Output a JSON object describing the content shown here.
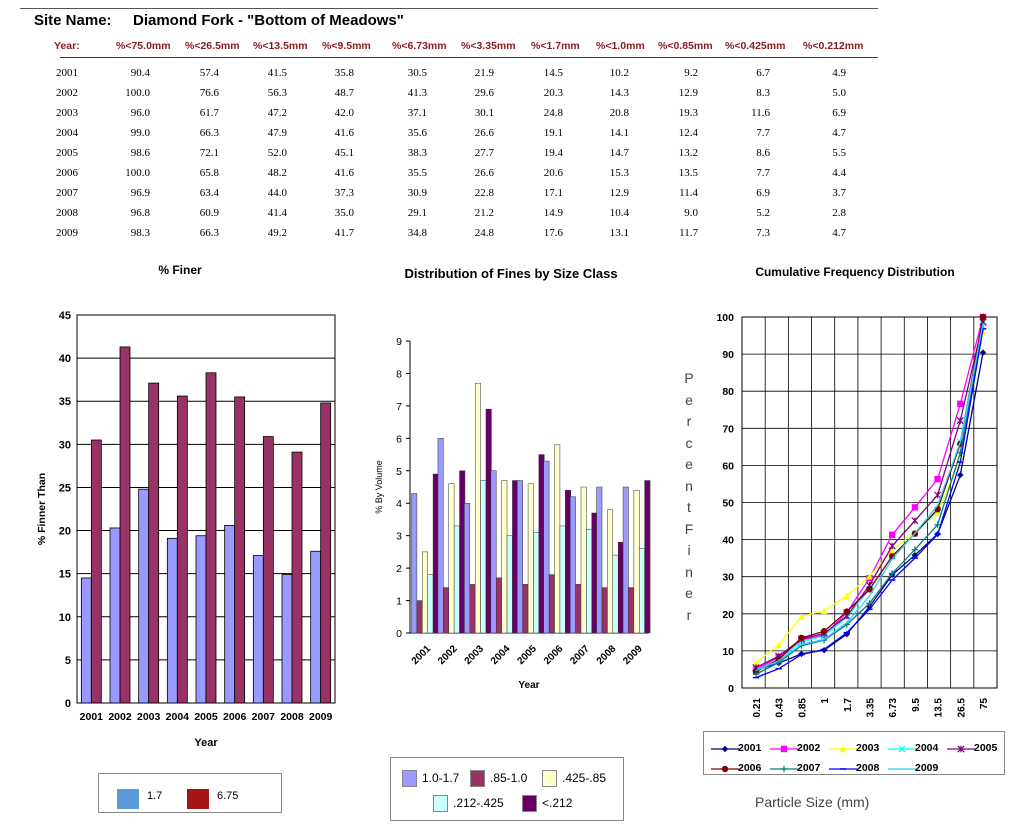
{
  "site": {
    "label": "Site Name:",
    "value": "Diamond Fork - \"Bottom of Meadows\""
  },
  "table": {
    "headers": [
      "Year:",
      "%<75.0mm",
      "%<26.5mm",
      "%<13.5mm",
      "%<9.5mm",
      "%<6.73mm",
      "%<3.35mm",
      "%<1.7mm",
      "%<1.0mm",
      "%<0.85mm",
      "%<0.425mm",
      "%<0.212mm"
    ],
    "rows": [
      [
        "2001",
        "90.4",
        "57.4",
        "41.5",
        "35.8",
        "30.5",
        "21.9",
        "14.5",
        "10.2",
        "9.2",
        "6.7",
        "4.9"
      ],
      [
        "2002",
        "100.0",
        "76.6",
        "56.3",
        "48.7",
        "41.3",
        "29.6",
        "20.3",
        "14.3",
        "12.9",
        "8.3",
        "5.0"
      ],
      [
        "2003",
        "96.0",
        "61.7",
        "47.2",
        "42.0",
        "37.1",
        "30.1",
        "24.8",
        "20.8",
        "19.3",
        "11.6",
        "6.9"
      ],
      [
        "2004",
        "99.0",
        "66.3",
        "47.9",
        "41.6",
        "35.6",
        "26.6",
        "19.1",
        "14.1",
        "12.4",
        "7.7",
        "4.7"
      ],
      [
        "2005",
        "98.6",
        "72.1",
        "52.0",
        "45.1",
        "38.3",
        "27.7",
        "19.4",
        "14.7",
        "13.2",
        "8.6",
        "5.5"
      ],
      [
        "2006",
        "100.0",
        "65.8",
        "48.2",
        "41.6",
        "35.5",
        "26.6",
        "20.6",
        "15.3",
        "13.5",
        "7.7",
        "4.4"
      ],
      [
        "2007",
        "96.9",
        "63.4",
        "44.0",
        "37.3",
        "30.9",
        "22.8",
        "17.1",
        "12.9",
        "11.4",
        "6.9",
        "3.7"
      ],
      [
        "2008",
        "96.8",
        "60.9",
        "41.4",
        "35.0",
        "29.1",
        "21.2",
        "14.9",
        "10.4",
        "9.0",
        "5.2",
        "2.8"
      ],
      [
        "2009",
        "98.3",
        "66.3",
        "49.2",
        "41.7",
        "34.8",
        "24.8",
        "17.6",
        "13.1",
        "11.7",
        "7.3",
        "4.7"
      ]
    ]
  },
  "chart_data": [
    {
      "type": "bar",
      "title": "% Finer",
      "xlabel": "Year",
      "ylabel": "% Finner Than",
      "ylim": [
        0,
        45
      ],
      "yticks": [
        0,
        5,
        10,
        15,
        20,
        25,
        30,
        35,
        40,
        45
      ],
      "grid": true,
      "legend_placement": "bottom",
      "categories": [
        "2001",
        "2002",
        "2003",
        "2004",
        "2005",
        "2006",
        "2007",
        "2008",
        "2009"
      ],
      "series": [
        {
          "name": "1.7",
          "color": "#9999ff",
          "legend_color": "#5b9bd5",
          "values": [
            14.5,
            20.3,
            24.8,
            19.1,
            19.4,
            20.6,
            17.1,
            14.9,
            17.6
          ]
        },
        {
          "name": "6.75",
          "color": "#993366",
          "legend_color": "#a31515",
          "values": [
            30.5,
            41.3,
            37.1,
            35.6,
            38.3,
            35.5,
            30.9,
            29.1,
            34.8
          ]
        }
      ]
    },
    {
      "type": "bar",
      "title": "Distribution of Fines by Size Class",
      "xlabel": "Year",
      "ylabel": "% By Volume",
      "ylim": [
        0,
        9
      ],
      "yticks": [
        0,
        1,
        2,
        3,
        4,
        5,
        6,
        7,
        8,
        9
      ],
      "grid": false,
      "legend_placement": "bottom",
      "categories": [
        "2001",
        "2002",
        "2003",
        "2004",
        "2005",
        "2006",
        "2007",
        "2008",
        "2009"
      ],
      "series": [
        {
          "name": "1.0-1.7",
          "color": "#9999ff",
          "values": [
            4.3,
            6.0,
            4.0,
            5.0,
            4.7,
            5.3,
            4.2,
            4.5,
            4.5
          ]
        },
        {
          "name": ".85-1.0",
          "color": "#993366",
          "values": [
            1.0,
            1.4,
            1.5,
            1.7,
            1.5,
            1.8,
            1.5,
            1.4,
            1.4
          ]
        },
        {
          "name": ".425-.85",
          "color": "#ffffcc",
          "values": [
            2.5,
            4.6,
            7.7,
            4.7,
            4.6,
            5.8,
            4.5,
            3.8,
            4.4
          ]
        },
        {
          "name": ".212-.425",
          "color": "#ccffff",
          "values": [
            1.8,
            3.3,
            4.7,
            3.0,
            3.1,
            3.3,
            3.2,
            2.4,
            2.6
          ]
        },
        {
          "name": "<.212",
          "color": "#660066",
          "values": [
            4.9,
            5.0,
            6.9,
            4.7,
            5.5,
            4.4,
            3.7,
            2.8,
            4.7
          ]
        }
      ]
    },
    {
      "type": "line",
      "title": "Cumulative Frequency Distribution",
      "xlabel": "Particle Size (mm)",
      "ylabel": "Percent Finer",
      "ylim": [
        0,
        100
      ],
      "yticks": [
        0,
        10,
        20,
        30,
        40,
        50,
        60,
        70,
        80,
        90,
        100
      ],
      "grid": true,
      "legend_placement": "bottom",
      "x": [
        "0.21",
        "0.43",
        "0.85",
        "1",
        "1.7",
        "3.35",
        "6.73",
        "9.5",
        "13.5",
        "26.5",
        "75"
      ],
      "series": [
        {
          "name": "2001",
          "color": "#000080",
          "marker": "diamond",
          "values": [
            4.9,
            6.7,
            9.2,
            10.2,
            14.5,
            21.9,
            30.5,
            35.8,
            41.5,
            57.4,
            90.4
          ]
        },
        {
          "name": "2002",
          "color": "#ff00ff",
          "marker": "square",
          "values": [
            5.0,
            8.3,
            12.9,
            14.3,
            20.3,
            29.6,
            41.3,
            48.7,
            56.3,
            76.6,
            100.0
          ]
        },
        {
          "name": "2003",
          "color": "#ffff00",
          "marker": "triangle",
          "values": [
            6.9,
            11.6,
            19.3,
            20.8,
            24.8,
            30.1,
            37.1,
            42.0,
            47.2,
            61.7,
            96.0
          ]
        },
        {
          "name": "2004",
          "color": "#00ffff",
          "marker": "x",
          "values": [
            4.7,
            7.7,
            12.4,
            14.1,
            19.1,
            26.6,
            35.6,
            41.6,
            47.9,
            66.3,
            99.0
          ]
        },
        {
          "name": "2005",
          "color": "#800080",
          "marker": "star",
          "values": [
            5.5,
            8.6,
            13.2,
            14.7,
            19.4,
            27.7,
            38.3,
            45.1,
            52.0,
            72.1,
            98.6
          ]
        },
        {
          "name": "2006",
          "color": "#800000",
          "marker": "dot",
          "values": [
            4.4,
            7.7,
            13.5,
            15.3,
            20.6,
            26.6,
            35.5,
            41.6,
            48.2,
            65.8,
            100.0
          ]
        },
        {
          "name": "2007",
          "color": "#008080",
          "marker": "plus",
          "values": [
            3.7,
            6.9,
            11.4,
            12.9,
            17.1,
            22.8,
            30.9,
            37.3,
            44.0,
            63.4,
            96.9
          ]
        },
        {
          "name": "2008",
          "color": "#0000ff",
          "marker": "dash",
          "values": [
            2.8,
            5.2,
            9.0,
            10.4,
            14.9,
            21.2,
            29.1,
            35.0,
            41.4,
            60.9,
            96.8
          ]
        },
        {
          "name": "2009",
          "color": "#33ccff",
          "marker": "none",
          "values": [
            4.7,
            7.3,
            11.7,
            13.1,
            17.6,
            24.8,
            34.8,
            41.7,
            49.2,
            66.3,
            98.3
          ]
        }
      ]
    }
  ]
}
